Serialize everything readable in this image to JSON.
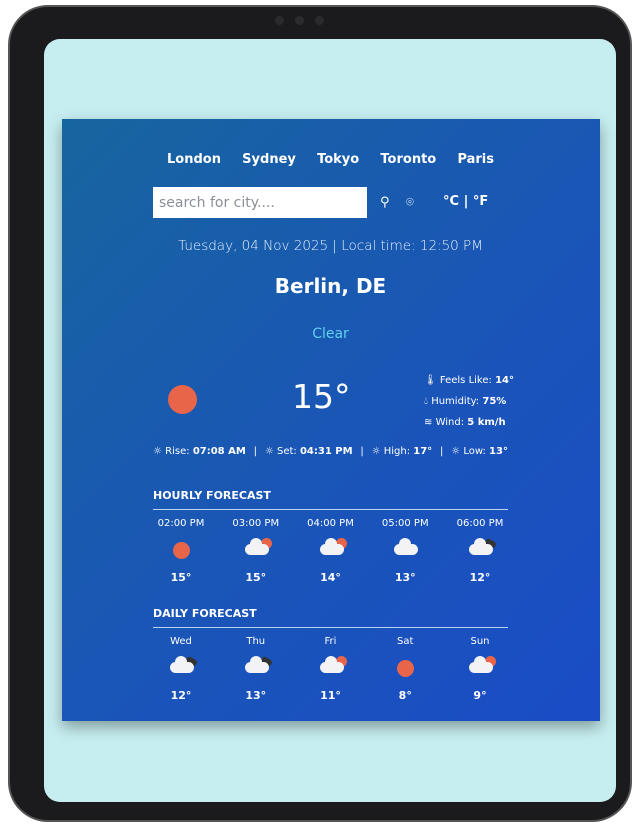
{
  "cities": [
    "London",
    "Sydney",
    "Tokyo",
    "Toronto",
    "Paris"
  ],
  "search": {
    "placeholder": "search for city....",
    "value": ""
  },
  "units_label": "°C | °F",
  "date_line": "Tuesday, 04 Nov 2025 | Local time: 12:50 PM",
  "location": "Berlin, DE",
  "condition": "Clear",
  "temperature": "15°",
  "details": {
    "feels_label": "Feels Like:",
    "feels": "14°",
    "humidity_label": "Humidity:",
    "humidity": "75%",
    "wind_label": "Wind:",
    "wind": "5 km/h"
  },
  "sun_row": {
    "rise_label": "Rise:",
    "rise": "07:08 AM",
    "set_label": "Set:",
    "set": "04:31 PM",
    "high_label": "High:",
    "high": "17°",
    "low_label": "Low:",
    "low": "13°"
  },
  "hourly": {
    "title": "HOURLY FORECAST",
    "items": [
      {
        "label": "02:00 PM",
        "icon": "sun",
        "temp": "15°"
      },
      {
        "label": "03:00 PM",
        "icon": "cloud-sun",
        "temp": "15°"
      },
      {
        "label": "04:00 PM",
        "icon": "cloud-sun",
        "temp": "14°"
      },
      {
        "label": "05:00 PM",
        "icon": "cloud",
        "temp": "13°"
      },
      {
        "label": "06:00 PM",
        "icon": "cloud-dark",
        "temp": "12°"
      }
    ]
  },
  "daily": {
    "title": "DAILY FORECAST",
    "items": [
      {
        "label": "Wed",
        "icon": "cloud-dark",
        "temp": "12°"
      },
      {
        "label": "Thu",
        "icon": "cloud-dark",
        "temp": "13°"
      },
      {
        "label": "Fri",
        "icon": "cloud-sun",
        "temp": "11°"
      },
      {
        "label": "Sat",
        "icon": "sun",
        "temp": "8°"
      },
      {
        "label": "Sun",
        "icon": "cloud-sun-rain",
        "temp": "9°"
      }
    ]
  },
  "colors": {
    "sun": "#e8654a",
    "condition": "#5fd0ef",
    "card_start": "#17659f",
    "card_end": "#1a4cc6"
  }
}
